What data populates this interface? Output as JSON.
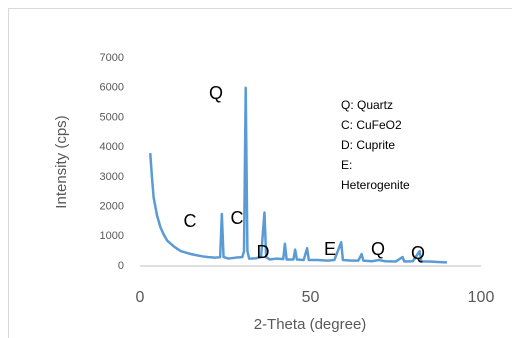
{
  "chart_data": {
    "type": "line",
    "x_label": "2-Theta (degree)",
    "y_label": "Intensity (cps)",
    "xlim": [
      0,
      100
    ],
    "xticks": [
      0,
      50,
      100
    ],
    "ylim": [
      0,
      7000
    ],
    "yticks": [
      0,
      1000,
      2000,
      3000,
      4000,
      5000,
      6000,
      7000
    ],
    "grid": false,
    "series": [
      {
        "name": null,
        "color": "#5b9bd5",
        "x": [
          3,
          3.5,
          4,
          5,
          6,
          7,
          8,
          10,
          12,
          15,
          18,
          20,
          22,
          23.5,
          24,
          24.5,
          26,
          28,
          30,
          30.5,
          31,
          31.5,
          32,
          34,
          35.5,
          36.5,
          37,
          38,
          40,
          42,
          42.5,
          43,
          45,
          45.5,
          46,
          48,
          49,
          49.5,
          52,
          55,
          57,
          59,
          59.5,
          62,
          64,
          65,
          65.5,
          68,
          70,
          72,
          75,
          77,
          77.5,
          80,
          82,
          82.5,
          85,
          88,
          90
        ],
        "values": [
          3800,
          3000,
          2300,
          1700,
          1300,
          1050,
          850,
          650,
          500,
          400,
          330,
          300,
          280,
          300,
          1750,
          300,
          250,
          280,
          300,
          500,
          6000,
          500,
          250,
          260,
          300,
          1800,
          300,
          220,
          250,
          230,
          750,
          220,
          220,
          550,
          220,
          200,
          600,
          200,
          200,
          180,
          200,
          800,
          200,
          180,
          180,
          400,
          180,
          160,
          200,
          160,
          150,
          300,
          150,
          160,
          500,
          150,
          150,
          130,
          120
        ]
      }
    ],
    "annotations": [
      "Q",
      "C",
      "C",
      "D",
      "E",
      "Q",
      "Q"
    ],
    "legend_text": [
      "Q: Quartz",
      "C: CuFeO2",
      "D: Cuprite",
      "E:",
      "Heterogenite"
    ]
  }
}
